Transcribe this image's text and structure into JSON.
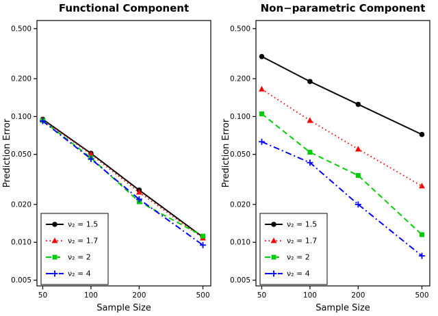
{
  "figure": {
    "background": "#ffffff",
    "axis_color": "#000000",
    "text_color": "#000000"
  },
  "chart_data": [
    {
      "type": "line",
      "title": "Functional Component",
      "xlabel": "Sample Size",
      "ylabel": "Prediction Error",
      "xscale": "log",
      "yscale": "log",
      "xlim": [
        46,
        560
      ],
      "ylim": [
        0.0045,
        0.58
      ],
      "x_ticks": {
        "values": [
          50,
          100,
          200,
          500
        ],
        "labels": [
          "50",
          "100",
          "200",
          "500"
        ]
      },
      "y_ticks": {
        "values": [
          0.005,
          0.01,
          0.02,
          0.05,
          0.1,
          0.2,
          0.5
        ],
        "labels": [
          "0.005",
          "0.010",
          "0.020",
          "0.050",
          "0.100",
          "0.200",
          "0.500"
        ]
      },
      "x": [
        50,
        100,
        200,
        500
      ],
      "series": [
        {
          "name": "nu2-1.5",
          "label": "ν₂ = 1.5",
          "color": "#000000",
          "linestyle": "solid",
          "marker": "circle",
          "values": [
            0.095,
            0.051,
            0.026,
            0.011
          ]
        },
        {
          "name": "nu2-1.7",
          "label": "ν₂ = 1.7",
          "color": "#ff0000",
          "linestyle": "dotted",
          "marker": "triangle",
          "values": [
            0.094,
            0.05,
            0.025,
            0.0108
          ]
        },
        {
          "name": "nu2-2",
          "label": "ν₂ = 2",
          "color": "#00cd00",
          "linestyle": "dashed",
          "marker": "square",
          "values": [
            0.093,
            0.047,
            0.021,
            0.0112
          ]
        },
        {
          "name": "nu2-4",
          "label": "ν₂ = 4",
          "color": "#0000ff",
          "linestyle": "dashdot",
          "marker": "plus",
          "values": [
            0.092,
            0.046,
            0.022,
            0.0095
          ]
        }
      ],
      "legend": {
        "position": "bottom-left",
        "border": true
      }
    },
    {
      "type": "line",
      "title": "Non−parametric Component",
      "xlabel": "Sample Size",
      "ylabel": "Prediction Error",
      "xscale": "log",
      "yscale": "log",
      "xlim": [
        46,
        560
      ],
      "ylim": [
        0.0045,
        0.58
      ],
      "x_ticks": {
        "values": [
          50,
          100,
          200,
          500
        ],
        "labels": [
          "50",
          "100",
          "200",
          "500"
        ]
      },
      "y_ticks": {
        "values": [
          0.005,
          0.01,
          0.02,
          0.05,
          0.1,
          0.2,
          0.5
        ],
        "labels": [
          "0.005",
          "0.010",
          "0.020",
          "0.050",
          "0.100",
          "0.200",
          "0.500"
        ]
      },
      "x": [
        50,
        100,
        200,
        500
      ],
      "series": [
        {
          "name": "nu2-1.5",
          "label": "ν₂ = 1.5",
          "color": "#000000",
          "linestyle": "solid",
          "marker": "circle",
          "values": [
            0.3,
            0.19,
            0.125,
            0.072
          ]
        },
        {
          "name": "nu2-1.7",
          "label": "ν₂ = 1.7",
          "color": "#ff0000",
          "linestyle": "dotted",
          "marker": "triangle",
          "values": [
            0.165,
            0.093,
            0.055,
            0.028
          ]
        },
        {
          "name": "nu2-2",
          "label": "ν₂ = 2",
          "color": "#00cd00",
          "linestyle": "dashed",
          "marker": "square",
          "values": [
            0.105,
            0.052,
            0.034,
            0.0115
          ]
        },
        {
          "name": "nu2-4",
          "label": "ν₂ = 4",
          "color": "#0000ff",
          "linestyle": "dashdot",
          "marker": "plus",
          "values": [
            0.063,
            0.043,
            0.02,
            0.0078
          ]
        }
      ],
      "legend": {
        "position": "bottom-left",
        "border": true
      }
    }
  ]
}
